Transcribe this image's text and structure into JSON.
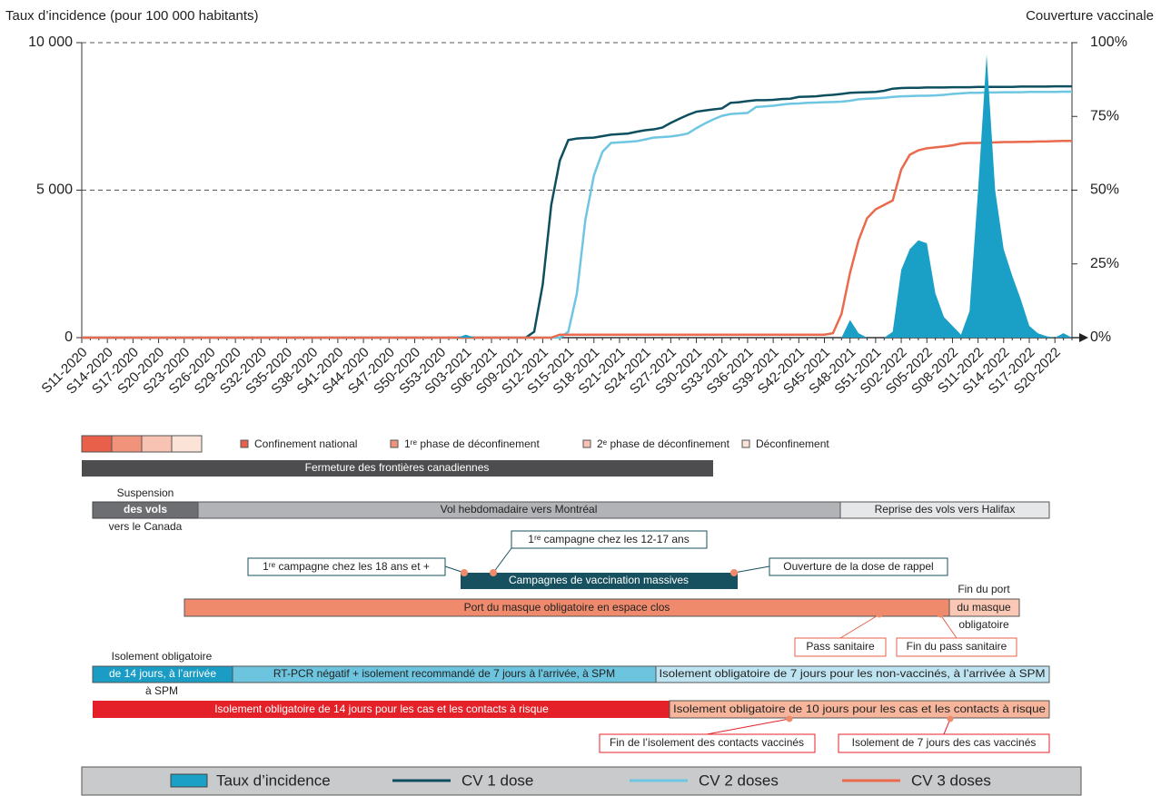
{
  "chart_data": {
    "type": "line",
    "y_label": "Taux d’incidence (pour 100 000 habitants)",
    "y2_label": "Couverture vaccinale",
    "categories": [
      "S11-2020",
      null,
      null,
      "S14-2020",
      null,
      null,
      "S17-2020",
      null,
      null,
      "S20-2020",
      null,
      null,
      "S23-2020",
      null,
      null,
      "S26-2020",
      null,
      null,
      "S29-2020",
      null,
      null,
      "S32-2020",
      null,
      null,
      "S35-2020",
      null,
      null,
      "S38-2020",
      null,
      null,
      "S41-2020",
      null,
      null,
      "S44-2020",
      null,
      null,
      "S47-2020",
      null,
      null,
      "S50-2020",
      null,
      null,
      "S53-2020",
      null,
      null,
      "S03-2021",
      null,
      null,
      "S06-2021",
      null,
      null,
      "S09-2021",
      null,
      null,
      "S12-2021",
      null,
      null,
      "S15-2021",
      null,
      null,
      "S18-2021",
      null,
      null,
      "S21-2021",
      null,
      null,
      "S24-2021",
      null,
      null,
      "S27-2021",
      null,
      null,
      "S30-2021",
      null,
      null,
      "S33-2021",
      null,
      null,
      "S36-2021",
      null,
      null,
      "S39-2021",
      null,
      null,
      "S42-2021",
      null,
      null,
      "S45-2021",
      null,
      null,
      "S48-2021",
      null,
      null,
      "S51-2021",
      null,
      null,
      "S02-2022",
      null,
      null,
      "S05-2022",
      null,
      null,
      "S08-2022",
      null,
      null,
      "S11-2022",
      null,
      null,
      "S14-2022",
      null,
      null,
      "S17-2022",
      null,
      null,
      "S20-2022",
      null,
      null
    ],
    "series": [
      {
        "name": "Taux d’incidence",
        "type": "area",
        "color": "#1aa0c6",
        "values": [
          0,
          0,
          0,
          0,
          0,
          0,
          0,
          0,
          0,
          0,
          0,
          0,
          0,
          0,
          0,
          0,
          0,
          0,
          0,
          0,
          0,
          0,
          0,
          0,
          0,
          0,
          0,
          0,
          0,
          0,
          0,
          0,
          0,
          0,
          0,
          0,
          0,
          0,
          0,
          0,
          0,
          0,
          0,
          0,
          0,
          100,
          0,
          0,
          0,
          0,
          0,
          0,
          0,
          0,
          0,
          0,
          0,
          0,
          0,
          0,
          0,
          0,
          0,
          0,
          0,
          0,
          0,
          0,
          0,
          0,
          0,
          0,
          0,
          0,
          0,
          0,
          0,
          0,
          0,
          0,
          0,
          0,
          0,
          0,
          0,
          0,
          0,
          0,
          0,
          0,
          600,
          150,
          0,
          0,
          0,
          200,
          2300,
          3000,
          3300,
          3200,
          1500,
          700,
          400,
          100,
          900,
          5000,
          9600,
          5000,
          3000,
          2100,
          1300,
          400,
          150,
          50,
          0,
          150,
          0
        ]
      },
      {
        "name": "CV 1 dose",
        "type": "line",
        "axis": "y2",
        "color": "#0d4f5e",
        "values": [
          0,
          0,
          0,
          0,
          0,
          0,
          0,
          0,
          0,
          0,
          0,
          0,
          0,
          0,
          0,
          0,
          0,
          0,
          0,
          0,
          0,
          0,
          0,
          0,
          0,
          0,
          0,
          0,
          0,
          0,
          0,
          0,
          0,
          0,
          0,
          0,
          0,
          0,
          0,
          0,
          0,
          0,
          0,
          0,
          0,
          0,
          0,
          0,
          0,
          0,
          0,
          0,
          0,
          2,
          18,
          45,
          60,
          67,
          67.5,
          67.7,
          67.8,
          68.3,
          68.8,
          69,
          69.2,
          69.8,
          70.3,
          70.6,
          71.2,
          72.8,
          74.2,
          75.5,
          76.6,
          77,
          77.4,
          77.7,
          79.6,
          79.8,
          80.2,
          80.5,
          80.5,
          80.6,
          80.9,
          81,
          81.6,
          81.7,
          81.8,
          82.1,
          82.3,
          82.6,
          83,
          83.1,
          83.2,
          83.3,
          83.7,
          84.4,
          84.6,
          84.7,
          84.7,
          84.8,
          84.8,
          84.8,
          84.9,
          84.9,
          84.9,
          85,
          85,
          85,
          85,
          85,
          85.1,
          85.1,
          85.1,
          85.1,
          85.2,
          85.2,
          85.2
        ]
      },
      {
        "name": "CV 2 doses",
        "type": "line",
        "axis": "y2",
        "color": "#6fc6e2",
        "values": [
          0,
          0,
          0,
          0,
          0,
          0,
          0,
          0,
          0,
          0,
          0,
          0,
          0,
          0,
          0,
          0,
          0,
          0,
          0,
          0,
          0,
          0,
          0,
          0,
          0,
          0,
          0,
          0,
          0,
          0,
          0,
          0,
          0,
          0,
          0,
          0,
          0,
          0,
          0,
          0,
          0,
          0,
          0,
          0,
          0,
          0,
          0,
          0,
          0,
          0,
          0,
          0,
          0,
          0,
          0,
          0,
          0,
          2,
          15,
          40,
          55,
          63,
          66,
          66.2,
          66.4,
          66.6,
          67.2,
          67.8,
          68,
          68.2,
          68.6,
          69.2,
          71,
          72.6,
          74,
          75.2,
          75.8,
          76,
          76.2,
          78.2,
          78.4,
          78.6,
          79,
          79.3,
          79.4,
          79.6,
          79.7,
          79.8,
          79.9,
          80,
          80.3,
          80.8,
          81,
          81.1,
          81.3,
          81.6,
          81.8,
          81.9,
          82,
          82,
          82.1,
          82.3,
          82.6,
          82.8,
          83,
          83,
          83.1,
          83.1,
          83.2,
          83.2,
          83.2,
          83.3,
          83.3,
          83.3,
          83.3,
          83.4,
          83.4
        ]
      },
      {
        "name": "CV 3 doses",
        "type": "line",
        "axis": "y2",
        "color": "#ea6a4d",
        "values": [
          0,
          0,
          0,
          0,
          0,
          0,
          0,
          0,
          0,
          0,
          0,
          0,
          0,
          0,
          0,
          0,
          0,
          0,
          0,
          0,
          0,
          0,
          0,
          0,
          0,
          0,
          0,
          0,
          0,
          0,
          0,
          0,
          0,
          0,
          0,
          0,
          0,
          0,
          0,
          0,
          0,
          0,
          0,
          0,
          0,
          0,
          0,
          0,
          0,
          0,
          0,
          0,
          0,
          0,
          0,
          0,
          1,
          1,
          1,
          1,
          1,
          1,
          1,
          1,
          1,
          1,
          1,
          1,
          1,
          1,
          1,
          1,
          1,
          1,
          1,
          1,
          1,
          1,
          1,
          1,
          1,
          1,
          1,
          1,
          1,
          1,
          1,
          1,
          1.5,
          8,
          22,
          33,
          40.5,
          43.5,
          45,
          46.5,
          57,
          62,
          63.5,
          64.2,
          64.5,
          64.8,
          65.2,
          65.8,
          66,
          66,
          66.1,
          66.2,
          66.3,
          66.3,
          66.4,
          66.4,
          66.5,
          66.5,
          66.6,
          66.7,
          66.7
        ]
      }
    ],
    "ylim": [
      0,
      10000
    ],
    "yticks": [
      {
        "value": 0,
        "label": "0"
      },
      {
        "value": 5000,
        "label": "5 000"
      },
      {
        "value": 10000,
        "label": "10 000"
      }
    ],
    "y2lim": [
      0,
      100
    ],
    "y2ticks": [
      {
        "value": 0,
        "label": "0%"
      },
      {
        "value": 25,
        "label": "25%"
      },
      {
        "value": 50,
        "label": "50%"
      },
      {
        "value": 75,
        "label": "75%"
      },
      {
        "value": 100,
        "label": "100%"
      }
    ],
    "grid": true,
    "legend": "bottom"
  },
  "timeline": {
    "phase_legend": [
      {
        "label": "Confinement national",
        "color": "#e8604a"
      },
      {
        "label": "1ʳᵉ phase de déconfinement",
        "color": "#f0937a"
      },
      {
        "label": "2ᵉ phase de déconfinement",
        "color": "#f8c3b2"
      },
      {
        "label": "Déconfinement",
        "color": "#fbe3d8"
      }
    ],
    "borders": "Fermeture des frontières canadiennes",
    "flights": {
      "suspension": [
        "Suspension",
        "des vols",
        "vers le Canada"
      ],
      "weekly": "Vol hebdomadaire vers Montréal",
      "halifax": "Reprise des vols vers Halifax"
    },
    "vaccination": {
      "campaign": "Campagnes de vaccination massives",
      "callouts": [
        "1ʳᵉ campagne chez les 12-17 ans",
        "1ʳᵉ campagne chez les 18 ans et +",
        "Ouverture de la dose de rappel"
      ]
    },
    "mask": {
      "indoor": "Port du masque obligatoire en espace clos",
      "end": [
        "Fin du port",
        "du masque",
        "obligatoire"
      ],
      "callouts": [
        "Pass sanitaire",
        "Fin du pass sanitaire"
      ]
    },
    "arrival_isolation": [
      "Isolement obligatoire",
      "de 14 jours, à l’arrivée",
      "à SPM",
      "RT-PCR négatif + isolement recommandé de 7 jours à l’arrivée, à SPM",
      "Isolement obligatoire de 7 jours pour les non-vaccinés, à l’arrivée à SPM"
    ],
    "case_isolation": [
      "Isolement obligatoire de 14 jours pour les cas et les contacts à risque",
      "Isolement obligatoire de 10 jours pour les cas et les contacts à risque",
      "Fin de l’isolement des contacts vaccinés",
      "Isolement de 7 jours des cas vaccinés"
    ]
  }
}
